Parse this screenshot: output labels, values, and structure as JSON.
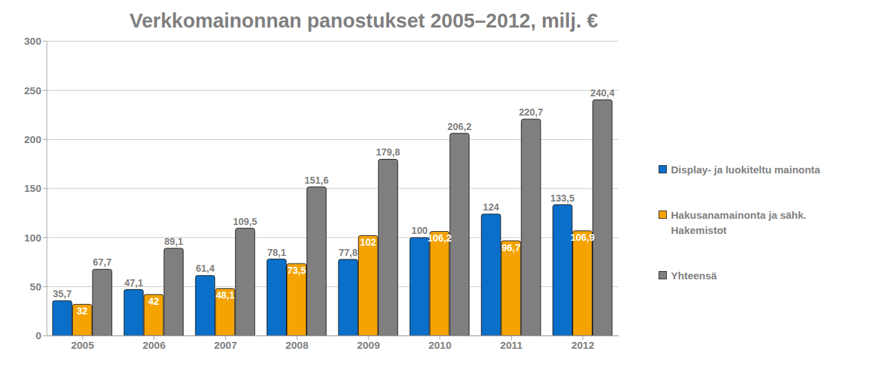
{
  "chart_data": {
    "type": "bar",
    "title": "Verkkomainonnan panostukset 2005–2012, milj. €",
    "categories": [
      "2005",
      "2006",
      "2007",
      "2008",
      "2009",
      "2010",
      "2011",
      "2012"
    ],
    "series": [
      {
        "name": "Display- ja luokiteltu mainonta",
        "color": "#0a6fc9",
        "values": [
          35.7,
          47.1,
          61.4,
          78.1,
          77.8,
          100,
          124,
          133.5
        ],
        "value_labels": [
          "35,7",
          "47,1",
          "61,4",
          "78,1",
          "77,8",
          "100",
          "124",
          "133,5"
        ]
      },
      {
        "name": "Hakusanamainonta ja sähk. Hakemistot",
        "color": "#f5a300",
        "values": [
          32,
          42,
          48.1,
          73.5,
          102,
          106.2,
          96.7,
          106.9
        ],
        "value_labels": [
          "32",
          "42",
          "48,1",
          "73,5",
          "102",
          "106,2",
          "96,7",
          "106,9"
        ]
      },
      {
        "name": "Yhteensä",
        "color": "#7f7f7f",
        "values": [
          67.7,
          89.1,
          109.5,
          151.6,
          179.8,
          206.2,
          220.7,
          240.4
        ],
        "value_labels": [
          "67,7",
          "89,1",
          "109,5",
          "151,6",
          "179,8",
          "206,2",
          "220,7",
          "240,4"
        ]
      }
    ],
    "ylim": [
      0,
      300
    ],
    "yticks": [
      0,
      50,
      100,
      150,
      200,
      250,
      300
    ],
    "grid": true,
    "legend": "right",
    "data_labels": true
  }
}
